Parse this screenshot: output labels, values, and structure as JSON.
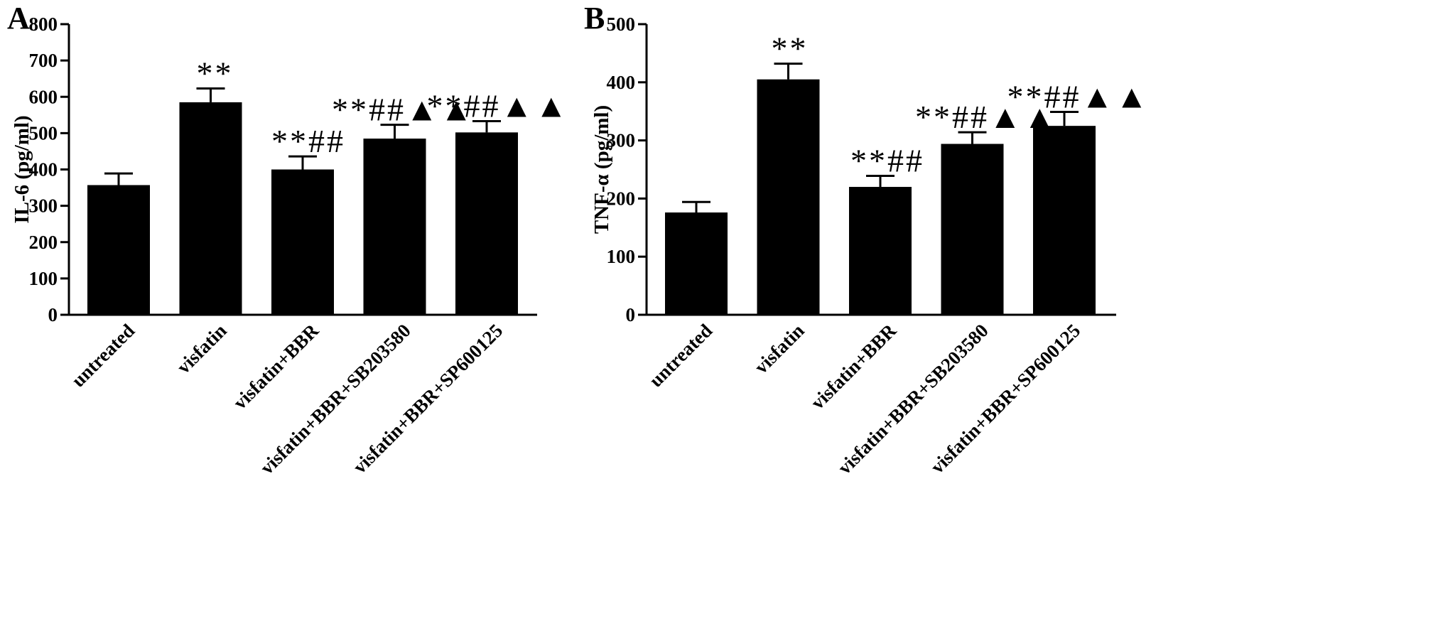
{
  "chart_data": [
    {
      "type": "bar",
      "panel_label": "A",
      "ylabel": "IL-6 (pg/ml)",
      "ylim": [
        0,
        800
      ],
      "yticks": [
        "0",
        "100",
        "200",
        "300",
        "400",
        "500",
        "600",
        "700",
        "800"
      ],
      "categories": [
        "untreated",
        "visfatin",
        "visfatin+BBR",
        "visfatin+BBR+SB203580",
        "visfatin+BBR+SP600125"
      ],
      "values": [
        357,
        585,
        400,
        485,
        502
      ],
      "errors": [
        32,
        38,
        36,
        38,
        31
      ],
      "annotations": [
        "",
        "**",
        "**##",
        "**##▲▲",
        "**##▲▲"
      ],
      "bar_color": "#000000",
      "grid": false
    },
    {
      "type": "bar",
      "panel_label": "B",
      "ylabel": "TNF-α (pg/ml)",
      "ylim": [
        0,
        500
      ],
      "yticks": [
        "0",
        "100",
        "200",
        "300",
        "400",
        "500"
      ],
      "categories": [
        "untreated",
        "visfatin",
        "visfatin+BBR",
        "visfatin+BBR+SB203580",
        "visfatin+BBR+SP600125"
      ],
      "values": [
        176,
        405,
        220,
        294,
        325
      ],
      "errors": [
        18,
        27,
        19,
        20,
        24
      ],
      "annotations": [
        "",
        "**",
        "**##",
        "**##▲▲",
        "**##▲▲"
      ],
      "bar_color": "#000000",
      "grid": false
    }
  ]
}
